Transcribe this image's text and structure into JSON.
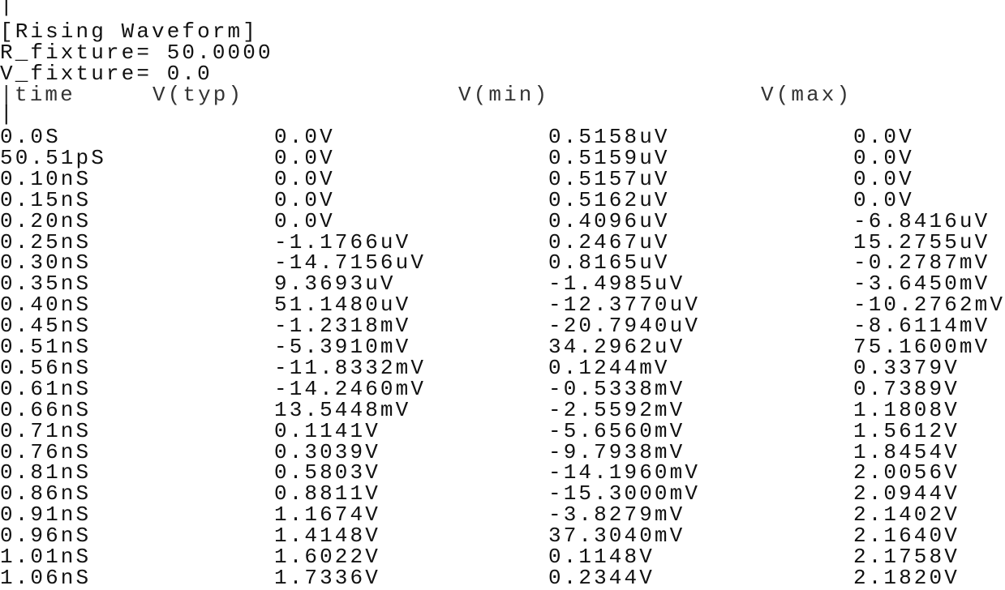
{
  "document": {
    "comment_bar": "|",
    "section_title": "[Rising Waveform]",
    "r_fixture": "R_fixture= 50.0000",
    "v_fixture": "V_fixture= 0.0",
    "header": {
      "bar": "|",
      "time": "time",
      "typ": "V(typ)",
      "min": "V(min)",
      "max": "V(max)"
    },
    "separator": "|",
    "rows": [
      [
        "0.0S",
        "0.0V",
        "0.5158uV",
        "0.0V"
      ],
      [
        "50.51pS",
        "0.0V",
        "0.5159uV",
        "0.0V"
      ],
      [
        "0.10nS",
        "0.0V",
        "0.5157uV",
        "0.0V"
      ],
      [
        "0.15nS",
        "0.0V",
        "0.5162uV",
        "0.0V"
      ],
      [
        "0.20nS",
        "0.0V",
        "0.4096uV",
        "-6.8416uV"
      ],
      [
        "0.25nS",
        "-1.1766uV",
        "0.2467uV",
        "15.2755uV"
      ],
      [
        "0.30nS",
        "-14.7156uV",
        "0.8165uV",
        "-0.2787mV"
      ],
      [
        "0.35nS",
        "9.3693uV",
        "-1.4985uV",
        "-3.6450mV"
      ],
      [
        "0.40nS",
        "51.1480uV",
        "-12.3770uV",
        "-10.2762mV"
      ],
      [
        "0.45nS",
        "-1.2318mV",
        "-20.7940uV",
        "-8.6114mV"
      ],
      [
        "0.51nS",
        "-5.3910mV",
        "34.2962uV",
        "75.1600mV"
      ],
      [
        "0.56nS",
        "-11.8332mV",
        "0.1244mV",
        "0.3379V"
      ],
      [
        "0.61nS",
        "-14.2460mV",
        "-0.5338mV",
        "0.7389V"
      ],
      [
        "0.66nS",
        "13.5448mV",
        "-2.5592mV",
        "1.1808V"
      ],
      [
        "0.71nS",
        "0.1141V",
        "-5.6560mV",
        "1.5612V"
      ],
      [
        "0.76nS",
        "0.3039V",
        "-9.7938mV",
        "1.8454V"
      ],
      [
        "0.81nS",
        "0.5803V",
        "-14.1960mV",
        "2.0056V"
      ],
      [
        "0.86nS",
        "0.8811V",
        "-15.3000mV",
        "2.0944V"
      ],
      [
        "0.91nS",
        "1.1674V",
        "-3.8279mV",
        "2.1402V"
      ],
      [
        "0.96nS",
        "1.4148V",
        "37.3040mV",
        "2.1640V"
      ],
      [
        "1.01nS",
        "1.6022V",
        "0.1148V",
        "2.1758V"
      ],
      [
        "1.06nS",
        "1.7336V",
        "0.2344V",
        "2.1820V"
      ]
    ]
  }
}
